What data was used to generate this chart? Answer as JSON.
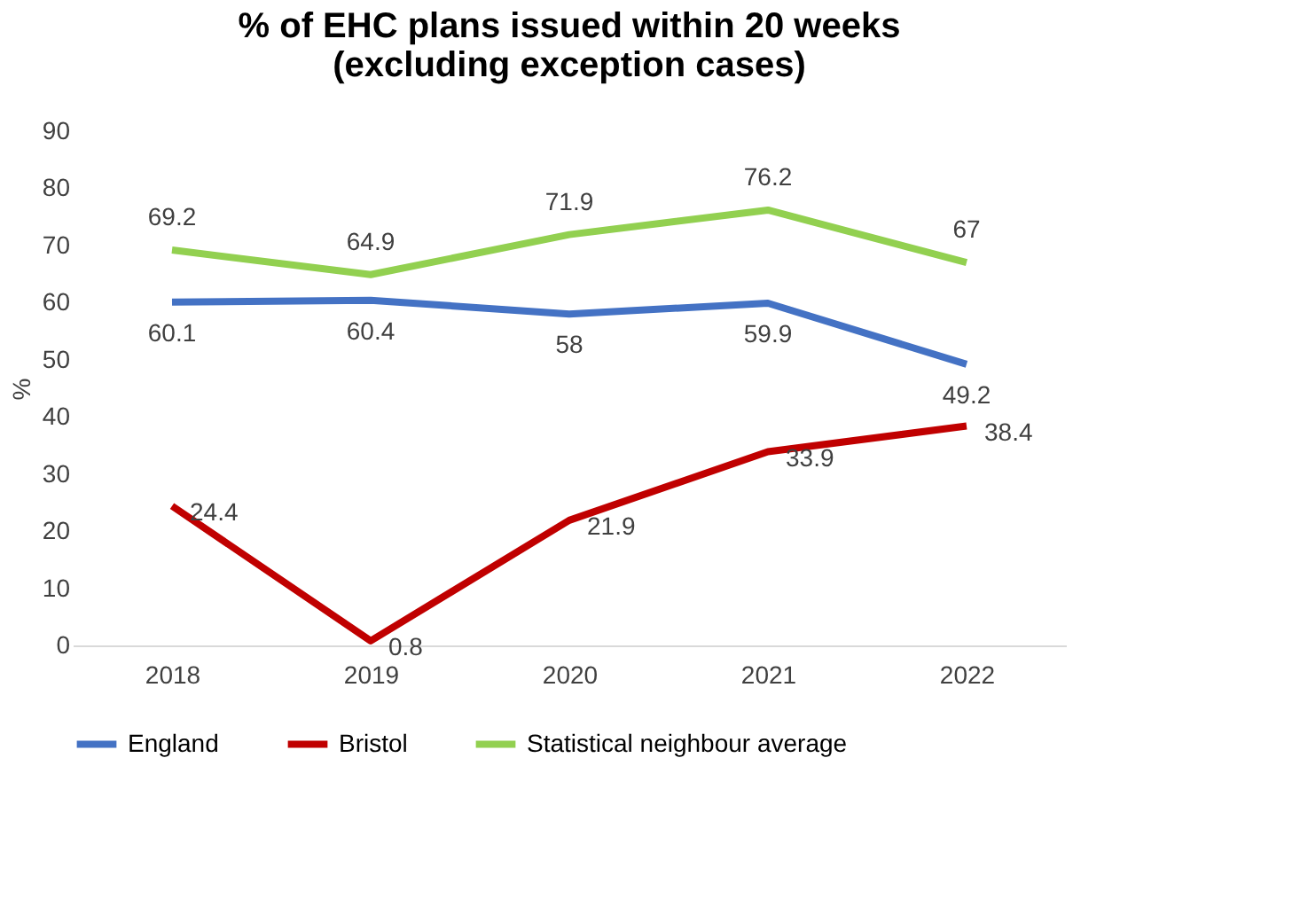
{
  "chart_data": {
    "type": "line",
    "title": "% of EHC plans issued within 20 weeks\n(excluding exception cases)",
    "ylabel": "%",
    "categories": [
      "2018",
      "2019",
      "2020",
      "2021",
      "2022"
    ],
    "series": [
      {
        "name": "England",
        "color": "#4472c4",
        "values": [
          60.1,
          60.4,
          58,
          59.9,
          49.2
        ]
      },
      {
        "name": "Bristol",
        "color": "#c00000",
        "values": [
          24.4,
          0.8,
          21.9,
          33.9,
          38.4
        ]
      },
      {
        "name": "Statistical neighbour average",
        "color": "#92d050",
        "values": [
          69.2,
          64.9,
          71.9,
          76.2,
          67
        ]
      }
    ],
    "ylim": [
      0,
      90
    ],
    "yticks": [
      0,
      10,
      20,
      30,
      40,
      50,
      60,
      70,
      80,
      90
    ],
    "grid": false,
    "legend": "bottom",
    "data_labels": true,
    "marker": "none",
    "line_style": "solid"
  }
}
